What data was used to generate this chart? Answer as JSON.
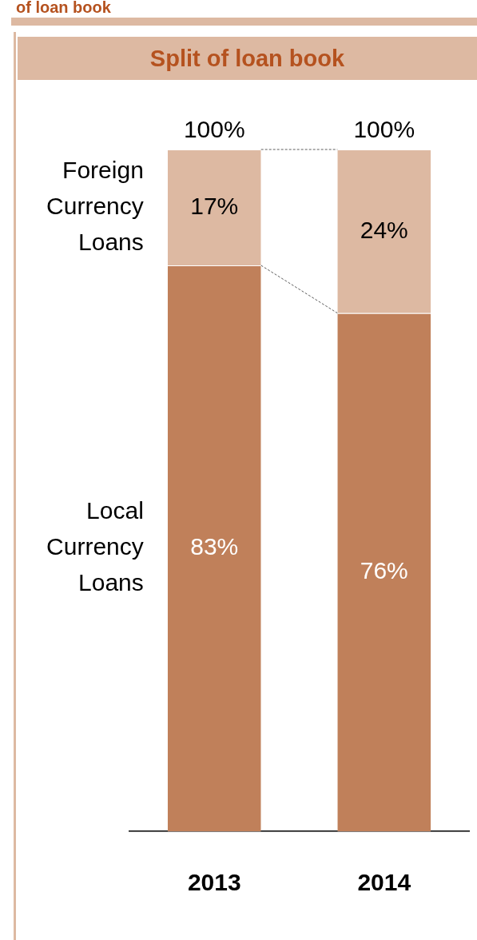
{
  "chart_data": {
    "type": "bar",
    "title": "Split of loan book",
    "annotations": [
      "of loan book"
    ],
    "categories": [
      "2013",
      "2014"
    ],
    "stacked": true,
    "series": [
      {
        "name": "Local Currency Loans",
        "color": "#c0805a",
        "values": [
          83,
          76
        ],
        "value_labels": [
          "83%",
          "76%"
        ]
      },
      {
        "name": "Foreign Currency Loans",
        "color": "#ddb9a2",
        "values": [
          17,
          24
        ],
        "value_labels": [
          "17%",
          "24%"
        ]
      }
    ],
    "totals": [
      "100%",
      "100%"
    ]
  }
}
